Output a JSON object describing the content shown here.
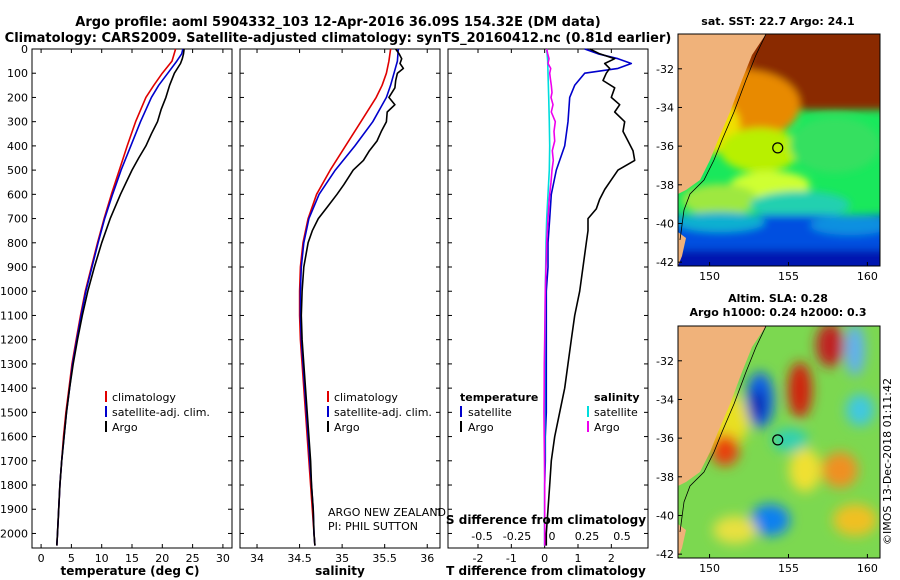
{
  "title": {
    "line1": "Argo profile: aoml 5904332_103 12-Apr-2016 36.09S 154.32E (DM data)",
    "line2": "Climatology: CARS2009. Satellite-adjusted climatology: synTS_20160412.nc (0.81d earlier)"
  },
  "colors": {
    "climatology": "#e00000",
    "satellite_adj": "#0000cc",
    "argo": "#000000",
    "salinity_sat": "#00dddd",
    "salinity_argo": "#ee00ee",
    "land": "#f0b27a"
  },
  "depth_axis": {
    "ticks": [
      0,
      100,
      200,
      300,
      400,
      500,
      600,
      700,
      800,
      900,
      1000,
      1100,
      1200,
      1300,
      1400,
      1500,
      1600,
      1700,
      1800,
      1900,
      2000
    ],
    "range": [
      0,
      2060
    ]
  },
  "chart_data": [
    {
      "type": "line",
      "name": "temperature",
      "xlabel": "temperature (deg C)",
      "ylabel": "depth",
      "xlim": [
        -1.5,
        31.5
      ],
      "xticks": [
        0,
        5,
        10,
        15,
        20,
        25,
        30
      ],
      "ylim": [
        2060,
        0
      ],
      "legend": [
        "climatology",
        "satellite-adj. clim.",
        "Argo"
      ],
      "legend_position": "bottom-center",
      "series": [
        {
          "name": "climatology",
          "color_key": "climatology",
          "depth": [
            0,
            50,
            100,
            150,
            200,
            300,
            400,
            500,
            600,
            700,
            800,
            900,
            1000,
            1100,
            1200,
            1300,
            1400,
            1500,
            1600,
            1700,
            1800,
            1900,
            2000,
            2050
          ],
          "values": [
            22.2,
            21.6,
            20.0,
            18.6,
            17.3,
            15.6,
            14.2,
            12.9,
            11.6,
            10.4,
            9.3,
            8.3,
            7.3,
            6.5,
            5.8,
            5.1,
            4.6,
            4.1,
            3.7,
            3.4,
            3.1,
            2.9,
            2.7,
            2.6
          ]
        },
        {
          "name": "satellite-adj. clim.",
          "color_key": "satellite_adj",
          "depth": [
            0,
            20,
            50,
            100,
            150,
            200,
            300,
            400,
            500,
            600,
            700,
            800,
            900,
            1000,
            1100,
            1200,
            1300,
            1400,
            1500,
            1600,
            1700,
            1800,
            1900,
            2000,
            2050
          ],
          "values": [
            23.4,
            23.2,
            22.4,
            20.9,
            19.4,
            18.2,
            16.4,
            14.8,
            13.2,
            11.8,
            10.5,
            9.4,
            8.4,
            7.4,
            6.6,
            5.9,
            5.2,
            4.7,
            4.2,
            3.8,
            3.4,
            3.1,
            2.9,
            2.7,
            2.6
          ]
        },
        {
          "name": "Argo",
          "color_key": "argo",
          "depth": [
            0,
            20,
            40,
            60,
            100,
            150,
            200,
            250,
            300,
            350,
            400,
            450,
            500,
            600,
            700,
            800,
            900,
            1000,
            1100,
            1200,
            1300,
            1400,
            1500,
            1600,
            1700,
            1800,
            1900,
            2000,
            2050
          ],
          "values": [
            23.6,
            23.5,
            23.3,
            23.0,
            22.0,
            21.2,
            20.6,
            19.8,
            19.2,
            18.2,
            17.3,
            16.1,
            15.0,
            13.1,
            11.4,
            10.0,
            8.8,
            7.7,
            6.8,
            6.0,
            5.3,
            4.7,
            4.2,
            3.8,
            3.4,
            3.1,
            2.9,
            2.7,
            2.6
          ]
        }
      ]
    },
    {
      "type": "line",
      "name": "salinity",
      "xlabel": "salinity",
      "ylabel": "depth",
      "xlim": [
        33.8,
        36.15
      ],
      "xticks": [
        34,
        34.5,
        35,
        35.5,
        36
      ],
      "ylim": [
        2060,
        0
      ],
      "legend": [
        "climatology",
        "satellite-adj. clim.",
        "Argo"
      ],
      "legend_position": "bottom-center",
      "series": [
        {
          "name": "climatology",
          "color_key": "climatology",
          "depth": [
            0,
            50,
            100,
            150,
            200,
            300,
            400,
            500,
            600,
            700,
            800,
            900,
            1000,
            1100,
            1200,
            1300,
            1400,
            1500,
            1600,
            1700,
            1800,
            1900,
            2000,
            2050
          ],
          "values": [
            35.57,
            35.55,
            35.52,
            35.47,
            35.4,
            35.22,
            35.04,
            34.86,
            34.7,
            34.6,
            34.54,
            34.51,
            34.5,
            34.5,
            34.51,
            34.53,
            34.55,
            34.57,
            34.59,
            34.61,
            34.63,
            34.65,
            34.67,
            34.68
          ]
        },
        {
          "name": "satellite-adj. clim.",
          "color_key": "satellite_adj",
          "depth": [
            0,
            50,
            100,
            150,
            200,
            300,
            400,
            500,
            600,
            700,
            800,
            900,
            1000,
            1100,
            1200,
            1300,
            1400,
            1500,
            1600,
            1700,
            1800,
            1900,
            2000,
            2050
          ],
          "values": [
            35.66,
            35.65,
            35.61,
            35.57,
            35.52,
            35.36,
            35.15,
            34.92,
            34.73,
            34.61,
            34.55,
            34.52,
            34.51,
            34.51,
            34.52,
            34.54,
            34.56,
            34.58,
            34.6,
            34.62,
            34.64,
            34.66,
            34.67,
            34.68
          ]
        },
        {
          "name": "Argo",
          "color_key": "argo",
          "depth": [
            0,
            20,
            40,
            60,
            80,
            100,
            130,
            160,
            200,
            230,
            260,
            300,
            340,
            380,
            420,
            460,
            500,
            560,
            600,
            650,
            700,
            750,
            800,
            900,
            1000,
            1100,
            1200,
            1300,
            1400,
            1500,
            1600,
            1700,
            1800,
            1900,
            2000,
            2050
          ],
          "values": [
            35.63,
            35.67,
            35.7,
            35.68,
            35.72,
            35.65,
            35.63,
            35.62,
            35.55,
            35.62,
            35.53,
            35.52,
            35.46,
            35.41,
            35.32,
            35.25,
            35.13,
            35.02,
            34.94,
            34.83,
            34.72,
            34.65,
            34.6,
            34.55,
            34.53,
            34.52,
            34.53,
            34.55,
            34.57,
            34.59,
            34.61,
            34.63,
            34.64,
            34.66,
            34.67,
            34.68
          ]
        }
      ]
    },
    {
      "type": "line",
      "name": "differences",
      "xlabel": "T difference from climatology",
      "xlabel_top": "S difference from climatology",
      "ylabel": "depth",
      "xlim": [
        -2.9,
        3.1
      ],
      "xticks": [
        -2,
        -1,
        0,
        1,
        2
      ],
      "xticks_top": [
        "-0.5",
        "-0.25",
        "0",
        "0.25",
        "0.5"
      ],
      "ylim": [
        2060,
        0
      ],
      "legend_temperature_title": "temperature",
      "legend_salinity_title": "salinity",
      "legend_temperature": [
        "satellite",
        "Argo"
      ],
      "legend_salinity": [
        "satellite",
        "Argo"
      ],
      "series": [
        {
          "name": "temperature satellite",
          "color_key": "satellite_adj",
          "depth": [
            0,
            20,
            40,
            60,
            80,
            100,
            150,
            200,
            300,
            400,
            500,
            600,
            700,
            800,
            900,
            1000,
            1100,
            1200,
            1300,
            1400,
            1500,
            1600,
            1700,
            1800,
            1900,
            2000,
            2050
          ],
          "values": [
            1.2,
            1.6,
            2.2,
            2.6,
            2.2,
            1.2,
            0.9,
            0.75,
            0.7,
            0.6,
            0.35,
            0.2,
            0.15,
            0.1,
            0.1,
            0.05,
            0.05,
            0.05,
            0.05,
            0.05,
            0.05,
            0.02,
            0.02,
            0.0,
            0.0,
            0.0,
            0.0
          ]
        },
        {
          "name": "temperature Argo",
          "color_key": "argo",
          "depth": [
            0,
            20,
            40,
            60,
            80,
            100,
            130,
            160,
            200,
            230,
            260,
            300,
            340,
            380,
            420,
            460,
            500,
            540,
            580,
            620,
            660,
            700,
            750,
            800,
            900,
            1000,
            1100,
            1200,
            1300,
            1400,
            1500,
            1600,
            1700,
            1800,
            1900,
            2000,
            2050
          ],
          "values": [
            1.35,
            1.65,
            2.1,
            1.8,
            1.95,
            1.85,
            1.75,
            2.1,
            2.0,
            2.25,
            2.1,
            2.4,
            2.35,
            2.5,
            2.65,
            2.7,
            2.2,
            2.0,
            1.8,
            1.65,
            1.55,
            1.3,
            1.3,
            1.25,
            1.15,
            1.05,
            0.9,
            0.8,
            0.7,
            0.6,
            0.45,
            0.3,
            0.2,
            0.15,
            0.1,
            0.05,
            0.05
          ]
        },
        {
          "name": "salinity satellite",
          "color_key": "salinity_sat",
          "depth": [
            0,
            50,
            100,
            200,
            300,
            400,
            500,
            600,
            700,
            800,
            900,
            1000,
            1100,
            1200,
            1300,
            1400,
            1500,
            1600,
            1700,
            1800,
            1900,
            2000,
            2050
          ],
          "values": [
            0.06,
            0.09,
            0.1,
            0.12,
            0.14,
            0.15,
            0.14,
            0.1,
            0.06,
            0.04,
            0.03,
            0.02,
            0.015,
            0.01,
            0.005,
            0.0,
            0.0,
            0.0,
            0.0,
            0.0,
            0.0,
            0.0,
            0.0
          ]
        },
        {
          "name": "salinity Argo",
          "color_key": "salinity_argo",
          "depth": [
            0,
            20,
            40,
            60,
            80,
            100,
            120,
            150,
            180,
            200,
            230,
            260,
            300,
            340,
            380,
            420,
            460,
            500,
            550,
            600,
            650,
            700,
            750,
            800,
            900,
            1000,
            1100,
            1200,
            1300,
            1400,
            1500,
            1600,
            1700,
            1800,
            1900,
            2000,
            2050
          ],
          "values": [
            0.06,
            0.09,
            0.13,
            0.1,
            0.18,
            0.15,
            0.17,
            0.2,
            0.22,
            0.19,
            0.25,
            0.2,
            0.32,
            0.28,
            0.3,
            0.23,
            0.26,
            0.22,
            0.19,
            0.15,
            0.12,
            0.1,
            0.08,
            0.06,
            0.04,
            0.02,
            0.01,
            0.0,
            -0.01,
            -0.015,
            -0.02,
            -0.015,
            -0.005,
            0.0,
            0.0,
            0.0,
            0.0
          ]
        }
      ]
    },
    {
      "type": "heatmap",
      "name": "sst_map",
      "title": "sat. SST: 22.7 Argo: 24.1",
      "xticks": [
        150,
        155,
        160
      ],
      "yticks": [
        -32,
        -34,
        -36,
        -38,
        -40,
        -42
      ],
      "xlim": [
        148,
        160.8
      ],
      "ylim": [
        -42.2,
        -30.2
      ],
      "marker": {
        "lon": 154.32,
        "lat": -36.09
      }
    },
    {
      "type": "heatmap",
      "name": "sla_map",
      "title_line1": "Altim. SLA: 0.28",
      "title_line2": "Argo h1000: 0.24 h2000: 0.3",
      "xticks": [
        150,
        155,
        160
      ],
      "yticks": [
        -32,
        -34,
        -36,
        -38,
        -40,
        -42
      ],
      "xlim": [
        148,
        160.8
      ],
      "ylim": [
        -42.2,
        -30.2
      ],
      "marker": {
        "lon": 154.32,
        "lat": -36.09
      }
    }
  ],
  "watermark": {
    "line1": "ARGO NEW ZEALAND",
    "line2": "PI: PHIL SUTTON"
  },
  "copyright": "©IMOS 13-Dec-2018 01:11:42"
}
